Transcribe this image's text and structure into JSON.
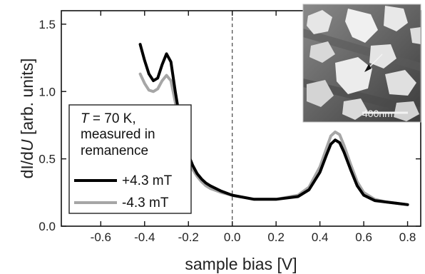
{
  "chart_data": {
    "type": "line",
    "xlabel": "sample bias [V]",
    "ylabel_parts": [
      "dI/d",
      "U",
      " [arb. units]"
    ],
    "xlim": [
      -0.78,
      0.86
    ],
    "ylim": [
      0.0,
      1.6
    ],
    "xticks": [
      "-0.6",
      "-0.4",
      "-0.2",
      "0.0",
      "0.2",
      "0.4",
      "0.6",
      "0.8"
    ],
    "xtick_values": [
      -0.6,
      -0.4,
      -0.2,
      0.0,
      0.2,
      0.4,
      0.6,
      0.8
    ],
    "yticks": [
      "0.0",
      "0.5",
      "1.0",
      "1.5"
    ],
    "ytick_values": [
      0.0,
      0.5,
      1.0,
      1.5
    ],
    "zero_line": {
      "x": 0.0,
      "style": "dashed"
    },
    "legend": {
      "placement": "left",
      "title_parts": [
        "T",
        " = 70 K,"
      ],
      "title_lines": [
        "measured in",
        "remanence"
      ]
    },
    "series": [
      {
        "name": "+4.3 mT",
        "color": "#000000",
        "x": [
          -0.42,
          -0.4,
          -0.38,
          -0.36,
          -0.34,
          -0.32,
          -0.3,
          -0.28,
          -0.26,
          -0.24,
          -0.22,
          -0.2,
          -0.18,
          -0.16,
          -0.14,
          -0.12,
          -0.1,
          -0.05,
          0.0,
          0.1,
          0.2,
          0.3,
          0.35,
          0.4,
          0.43,
          0.45,
          0.47,
          0.49,
          0.51,
          0.54,
          0.57,
          0.6,
          0.65,
          0.7,
          0.75,
          0.8
        ],
        "y": [
          1.35,
          1.23,
          1.13,
          1.08,
          1.1,
          1.2,
          1.28,
          1.22,
          1.0,
          0.8,
          0.65,
          0.53,
          0.45,
          0.39,
          0.35,
          0.32,
          0.3,
          0.26,
          0.23,
          0.2,
          0.2,
          0.22,
          0.27,
          0.4,
          0.53,
          0.61,
          0.64,
          0.62,
          0.55,
          0.42,
          0.3,
          0.23,
          0.19,
          0.18,
          0.17,
          0.16
        ]
      },
      {
        "name": "-4.3 mT",
        "color": "#a6a6a6",
        "x": [
          -0.42,
          -0.4,
          -0.38,
          -0.36,
          -0.34,
          -0.32,
          -0.3,
          -0.28,
          -0.26,
          -0.24,
          -0.22,
          -0.2,
          -0.18,
          -0.16,
          -0.14,
          -0.12,
          -0.1,
          -0.05,
          0.0,
          0.1,
          0.2,
          0.3,
          0.35,
          0.4,
          0.43,
          0.45,
          0.47,
          0.49,
          0.51,
          0.54,
          0.57,
          0.6,
          0.65,
          0.7,
          0.75,
          0.8
        ],
        "y": [
          1.13,
          1.06,
          1.01,
          1.0,
          1.02,
          1.08,
          1.12,
          1.08,
          0.92,
          0.75,
          0.61,
          0.5,
          0.42,
          0.37,
          0.33,
          0.3,
          0.28,
          0.25,
          0.23,
          0.2,
          0.2,
          0.23,
          0.29,
          0.44,
          0.58,
          0.67,
          0.7,
          0.68,
          0.6,
          0.46,
          0.33,
          0.25,
          0.2,
          0.18,
          0.17,
          0.16
        ]
      }
    ],
    "inset": {
      "kind": "STM topography image",
      "scale_bar_label": "400nm"
    }
  }
}
